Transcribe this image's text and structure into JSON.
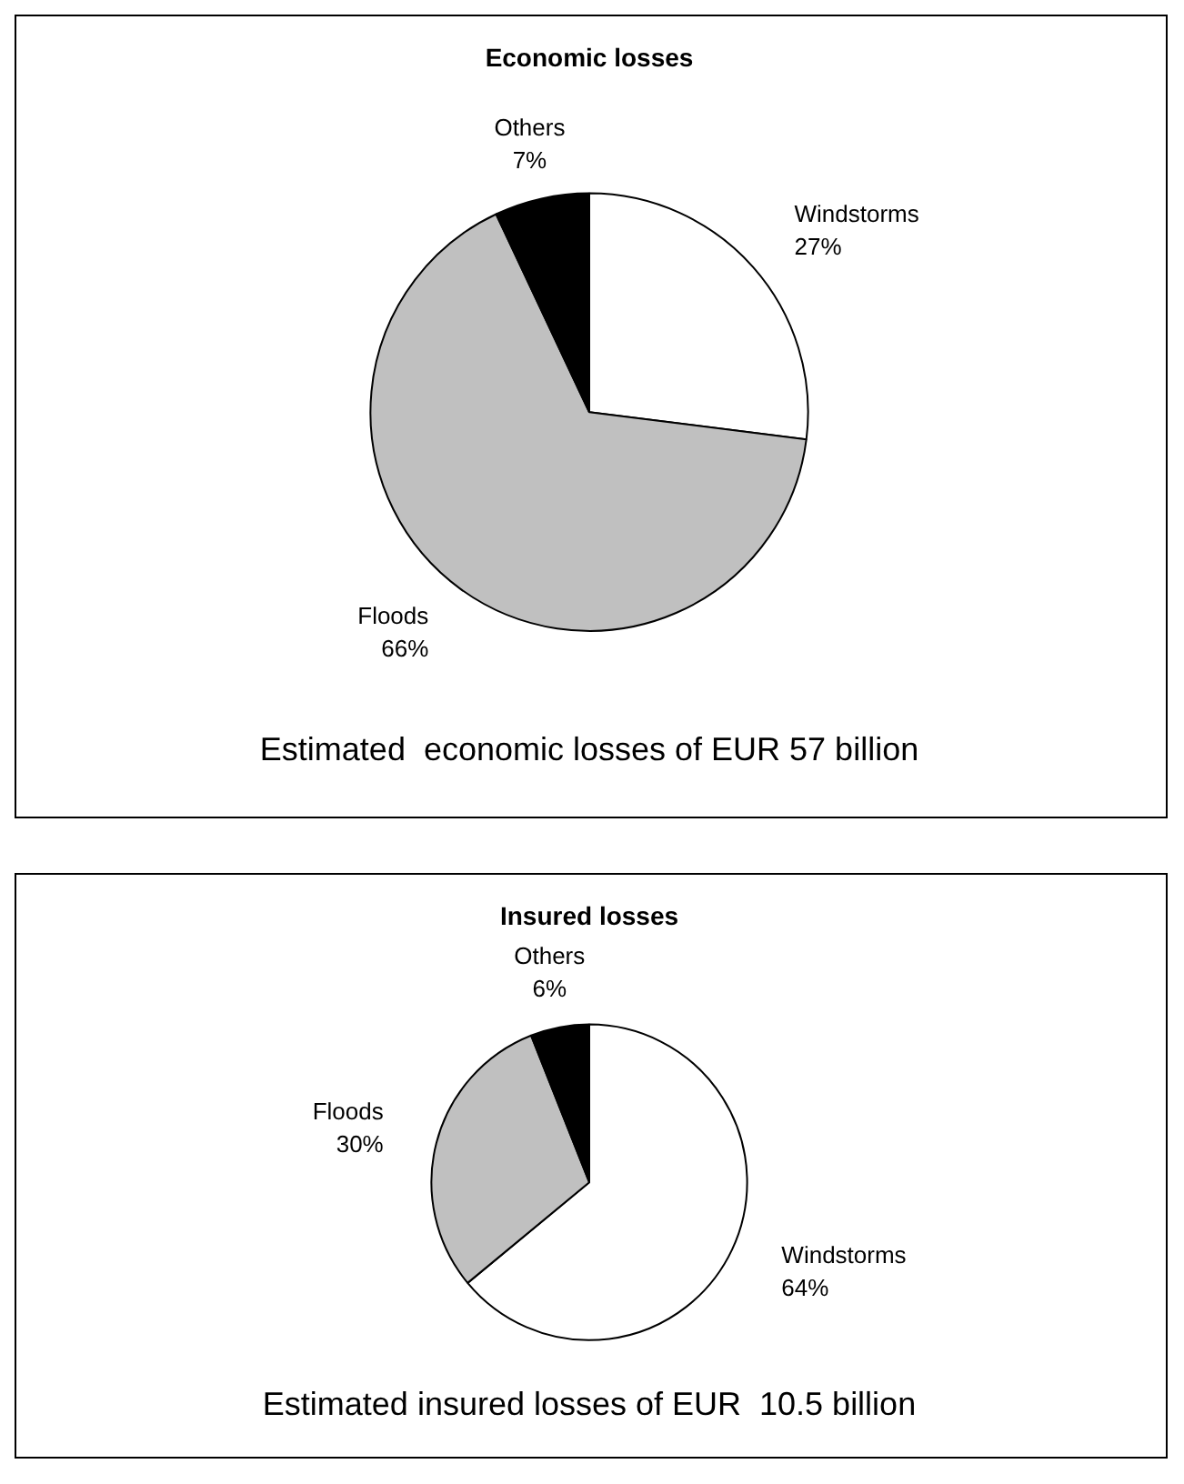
{
  "chart_data": [
    {
      "type": "pie",
      "title": "Economic losses",
      "categories": [
        "Windstorms",
        "Floods",
        "Others"
      ],
      "values": [
        27,
        66,
        7
      ],
      "value_labels": [
        "27%",
        "66%",
        "7%"
      ],
      "colors": [
        "#ffffff",
        "#c0c0c0",
        "#000000"
      ],
      "legend": false,
      "annotations": [
        "Estimated  economic losses of EUR 57 billion"
      ]
    },
    {
      "type": "pie",
      "title": "Insured losses",
      "categories": [
        "Windstorms",
        "Floods",
        "Others"
      ],
      "values": [
        64,
        30,
        6
      ],
      "value_labels": [
        "64%",
        "30%",
        "6%"
      ],
      "colors": [
        "#ffffff",
        "#c0c0c0",
        "#000000"
      ],
      "legend": false,
      "annotations": [
        "Estimated insured losses of EUR  10.5 billion"
      ]
    }
  ]
}
